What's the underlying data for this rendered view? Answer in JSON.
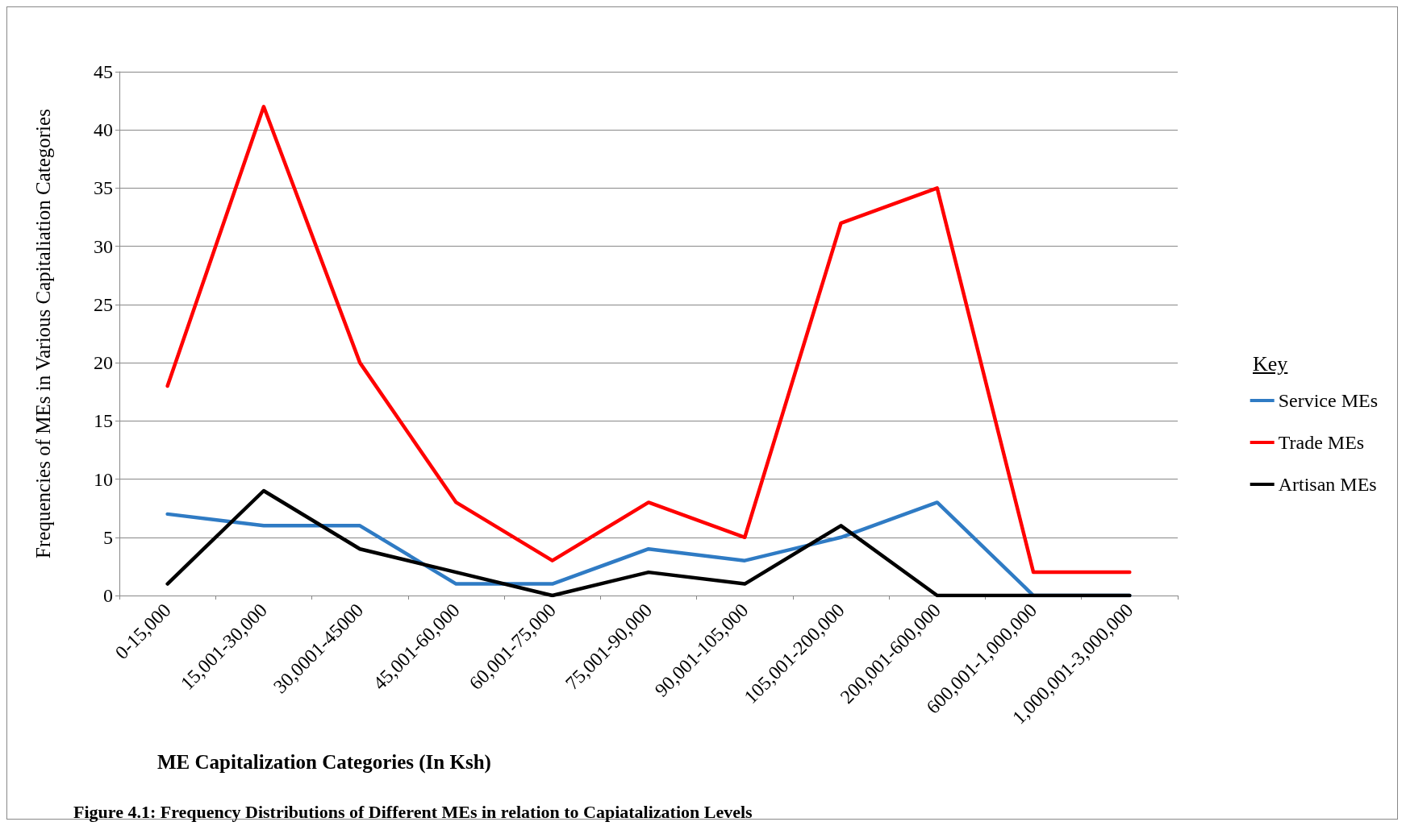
{
  "chart_data": {
    "type": "line",
    "xlabel": "ME Capitalization Categories (In Ksh)",
    "ylabel": "Frequencies of MEs in Various Capitaliation Categories",
    "legend_title": "Key",
    "annotations": [
      "Figure 4.1: Frequency Distributions of Different MEs in relation to Capiatalization Levels"
    ],
    "categories": [
      "0-15,000",
      "15,001-30,000",
      "30,0001-45000",
      "45,001-60,000",
      "60,001-75,000",
      "75,001-90,000",
      "90,001-105,000",
      "105,001-200,000",
      "200,001-600,000",
      "600,001-1,000,000",
      "1,000,001-3,000,000"
    ],
    "series": [
      {
        "name": "Service MEs",
        "color": "#2f7bc4",
        "values": [
          7,
          6,
          6,
          1,
          1,
          4,
          3,
          5,
          8,
          0,
          0
        ]
      },
      {
        "name": "Trade MEs",
        "color": "#ff0000",
        "values": [
          18,
          42,
          20,
          8,
          3,
          8,
          5,
          32,
          35,
          2,
          2
        ]
      },
      {
        "name": "Artisan MEs",
        "color": "#000000",
        "values": [
          1,
          9,
          4,
          2,
          0,
          2,
          1,
          6,
          0,
          0,
          0
        ]
      }
    ],
    "ylim": [
      0,
      45
    ],
    "yticks": [
      0,
      5,
      10,
      15,
      20,
      25,
      30,
      35,
      40,
      45
    ],
    "grid": "y",
    "legend": "right",
    "marker": "none",
    "line_style": "solid"
  }
}
